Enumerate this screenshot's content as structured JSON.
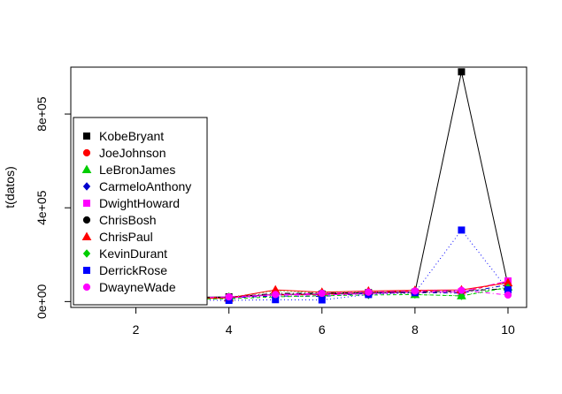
{
  "chart_data": {
    "type": "line",
    "ylabel": "t(datos)",
    "xlabel": "",
    "xlim": [
      0.6,
      10.4
    ],
    "ylim": [
      -25000,
      1000000
    ],
    "x": [
      1,
      2,
      3,
      4,
      5,
      6,
      7,
      8,
      9,
      10
    ],
    "x_ticks": [
      2,
      4,
      6,
      8,
      10
    ],
    "x_tick_labels": [
      "2",
      "4",
      "6",
      "8",
      "10"
    ],
    "y_ticks": [
      0,
      400000,
      800000
    ],
    "y_tick_labels": [
      "0e+00",
      "4e+05",
      "8e+05"
    ],
    "legend_position": "left",
    "series": [
      {
        "name": "KobeBryant",
        "color": "#000000",
        "marker": "square",
        "dash": "",
        "values": [
          15000,
          16000,
          18000,
          20000,
          30000,
          32000,
          38000,
          40000,
          980000,
          70000
        ]
      },
      {
        "name": "JoeJohnson",
        "color": "#ff0000",
        "marker": "circle",
        "dash": "4,3",
        "values": [
          12000,
          14000,
          17000,
          18000,
          28000,
          30000,
          40000,
          45000,
          40000,
          85000
        ]
      },
      {
        "name": "LeBronJames",
        "color": "#00cd00",
        "marker": "triangle",
        "dash": "1,3",
        "values": [
          14000,
          15000,
          17000,
          19000,
          45000,
          38000,
          42000,
          30000,
          25000,
          62000
        ]
      },
      {
        "name": "CarmeloAnthony",
        "color": "#0000cd",
        "marker": "diamond",
        "dash": "1,3,5,3",
        "values": [
          10000,
          12000,
          14000,
          16000,
          24000,
          22000,
          35000,
          38000,
          36000,
          72000
        ]
      },
      {
        "name": "DwightHoward",
        "color": "#ff00ff",
        "marker": "square",
        "dash": "8,3",
        "values": [
          8000,
          10000,
          13000,
          15000,
          30000,
          28000,
          34000,
          40000,
          42000,
          88000
        ]
      },
      {
        "name": "ChrisBosh",
        "color": "#000000",
        "marker": "circle",
        "dash": "6,3,1,3",
        "values": [
          11000,
          13000,
          16000,
          18000,
          35000,
          36000,
          38000,
          40000,
          45000,
          55000
        ]
      },
      {
        "name": "ChrisPaul",
        "color": "#ff0000",
        "marker": "triangle",
        "dash": "",
        "values": [
          9000,
          11000,
          13000,
          15000,
          50000,
          40000,
          45000,
          48000,
          50000,
          80000
        ]
      },
      {
        "name": "KevinDurant",
        "color": "#00cd00",
        "marker": "diamond",
        "dash": "4,3",
        "values": [
          6000,
          8000,
          10000,
          12000,
          20000,
          25000,
          28000,
          30000,
          24000,
          60000
        ]
      },
      {
        "name": "DerrickRose",
        "color": "#0000ff",
        "marker": "square",
        "dash": "1,3",
        "values": [
          5000,
          6000,
          7000,
          5000,
          8000,
          7000,
          30000,
          38000,
          305000,
          50000
        ]
      },
      {
        "name": "DwayneWade",
        "color": "#ff00ff",
        "marker": "circle",
        "dash": "1,3,5,3",
        "values": [
          12000,
          14000,
          16000,
          20000,
          30000,
          35000,
          40000,
          45000,
          48000,
          28000
        ]
      }
    ]
  }
}
